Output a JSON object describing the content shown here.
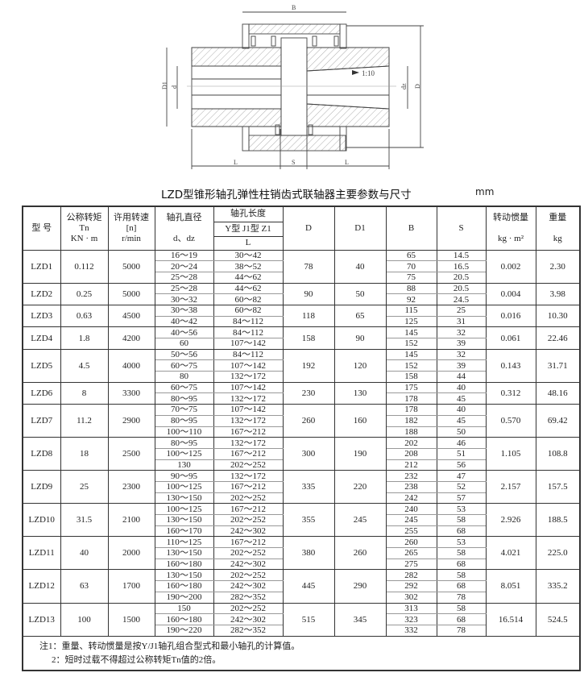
{
  "drawing": {
    "labels": {
      "B": "B",
      "D1": "D1",
      "d": "d",
      "dz": "dz",
      "D": "D",
      "L_left": "L",
      "S": "S",
      "L_right": "L",
      "taper": "1:10"
    }
  },
  "title": "LZD型锥形轴孔弹性柱销齿式联轴器主要参数与尺寸",
  "unit": "mm",
  "header": {
    "model": "型  号",
    "torque": [
      "公称转矩",
      "Tn",
      "KN · m"
    ],
    "speed": [
      "许用转速",
      "[n]",
      "r/min"
    ],
    "bore_diameter": [
      "轴孔直径",
      "d、dz"
    ],
    "bore_length": "轴孔长度",
    "bore_length_types": "Y型 J1型 Z1",
    "bore_length_L": "L",
    "D": "D",
    "D1": "D1",
    "B": "B",
    "S": "S",
    "inertia": [
      "转动惯量",
      "kg · m²"
    ],
    "weight": [
      "重量",
      "kg"
    ]
  },
  "rows": [
    {
      "model": "LZD1",
      "tn": "0.112",
      "n": "5000",
      "D": "78",
      "D1": "40",
      "inertia": "0.002",
      "weight": "2.30",
      "sub": [
        [
          "16～19",
          "30～42",
          "65",
          "14.5"
        ],
        [
          "20～24",
          "38～52",
          "70",
          "16.5"
        ],
        [
          "25～28",
          "44～62",
          "75",
          "20.5"
        ]
      ]
    },
    {
      "model": "LZD2",
      "tn": "0.25",
      "n": "5000",
      "D": "90",
      "D1": "50",
      "inertia": "0.004",
      "weight": "3.98",
      "sub": [
        [
          "25～28",
          "44～62",
          "88",
          "20.5"
        ],
        [
          "30～32",
          "60～82",
          "92",
          "24.5"
        ]
      ]
    },
    {
      "model": "LZD3",
      "tn": "0.63",
      "n": "4500",
      "D": "118",
      "D1": "65",
      "inertia": "0.016",
      "weight": "10.30",
      "sub": [
        [
          "30～38",
          "60～82",
          "115",
          "25"
        ],
        [
          "40～42",
          "84～112",
          "125",
          "31"
        ]
      ]
    },
    {
      "model": "LZD4",
      "tn": "1.8",
      "n": "4200",
      "D": "158",
      "D1": "90",
      "inertia": "0.061",
      "weight": "22.46",
      "sub": [
        [
          "40～56",
          "84～112",
          "145",
          "32"
        ],
        [
          "60",
          "107～142",
          "152",
          "39"
        ]
      ]
    },
    {
      "model": "LZD5",
      "tn": "4.5",
      "n": "4000",
      "D": "192",
      "D1": "120",
      "inertia": "0.143",
      "weight": "31.71",
      "sub": [
        [
          "50～56",
          "84～112",
          "145",
          "32"
        ],
        [
          "60～75",
          "107～142",
          "152",
          "39"
        ],
        [
          "80",
          "132～172",
          "158",
          "44"
        ]
      ]
    },
    {
      "model": "LZD6",
      "tn": "8",
      "n": "3300",
      "D": "230",
      "D1": "130",
      "inertia": "0.312",
      "weight": "48.16",
      "sub": [
        [
          "60～75",
          "107～142",
          "175",
          "40"
        ],
        [
          "80～95",
          "132～172",
          "178",
          "45"
        ]
      ]
    },
    {
      "model": "LZD7",
      "tn": "11.2",
      "n": "2900",
      "D": "260",
      "D1": "160",
      "inertia": "0.570",
      "weight": "69.42",
      "sub": [
        [
          "70～75",
          "107～142",
          "178",
          "40"
        ],
        [
          "80～95",
          "132～172",
          "182",
          "45"
        ],
        [
          "100～110",
          "167～212",
          "188",
          "50"
        ]
      ]
    },
    {
      "model": "LZD8",
      "tn": "18",
      "n": "2500",
      "D": "300",
      "D1": "190",
      "inertia": "1.105",
      "weight": "108.8",
      "sub": [
        [
          "80～95",
          "132～172",
          "202",
          "46"
        ],
        [
          "100～125",
          "167～212",
          "208",
          "51"
        ],
        [
          "130",
          "202～252",
          "212",
          "56"
        ]
      ]
    },
    {
      "model": "LZD9",
      "tn": "25",
      "n": "2300",
      "D": "335",
      "D1": "220",
      "inertia": "2.157",
      "weight": "157.5",
      "sub": [
        [
          "90～95",
          "132～172",
          "232",
          "47"
        ],
        [
          "100～125",
          "167～212",
          "238",
          "52"
        ],
        [
          "130～150",
          "202～252",
          "242",
          "57"
        ]
      ]
    },
    {
      "model": "LZD10",
      "tn": "31.5",
      "n": "2100",
      "D": "355",
      "D1": "245",
      "inertia": "2.926",
      "weight": "188.5",
      "sub": [
        [
          "100～125",
          "167～212",
          "240",
          "53"
        ],
        [
          "130～150",
          "202～252",
          "245",
          "58"
        ],
        [
          "160～170",
          "242～302",
          "255",
          "68"
        ]
      ]
    },
    {
      "model": "LZD11",
      "tn": "40",
      "n": "2000",
      "D": "380",
      "D1": "260",
      "inertia": "4.021",
      "weight": "225.0",
      "sub": [
        [
          "110～125",
          "167～212",
          "260",
          "53"
        ],
        [
          "130～150",
          "202～252",
          "265",
          "58"
        ],
        [
          "160～180",
          "242～302",
          "275",
          "68"
        ]
      ]
    },
    {
      "model": "LZD12",
      "tn": "63",
      "n": "1700",
      "D": "445",
      "D1": "290",
      "inertia": "8.051",
      "weight": "335.2",
      "sub": [
        [
          "130～150",
          "202～252",
          "282",
          "58"
        ],
        [
          "160～180",
          "242～302",
          "292",
          "68"
        ],
        [
          "190～200",
          "282～352",
          "302",
          "78"
        ]
      ]
    },
    {
      "model": "LZD13",
      "tn": "100",
      "n": "1500",
      "D": "515",
      "D1": "345",
      "inertia": "16.514",
      "weight": "524.5",
      "sub": [
        [
          "150",
          "202～252",
          "313",
          "58"
        ],
        [
          "160～180",
          "242～302",
          "323",
          "68"
        ],
        [
          "190～220",
          "282～352",
          "332",
          "78"
        ]
      ]
    }
  ],
  "notes": [
    "注1：重量、转动惯量是按Y/J1轴孔组合型式和最小轴孔的计算值。",
    "2：短时过载不得超过公称转矩Tn值的2倍。"
  ]
}
